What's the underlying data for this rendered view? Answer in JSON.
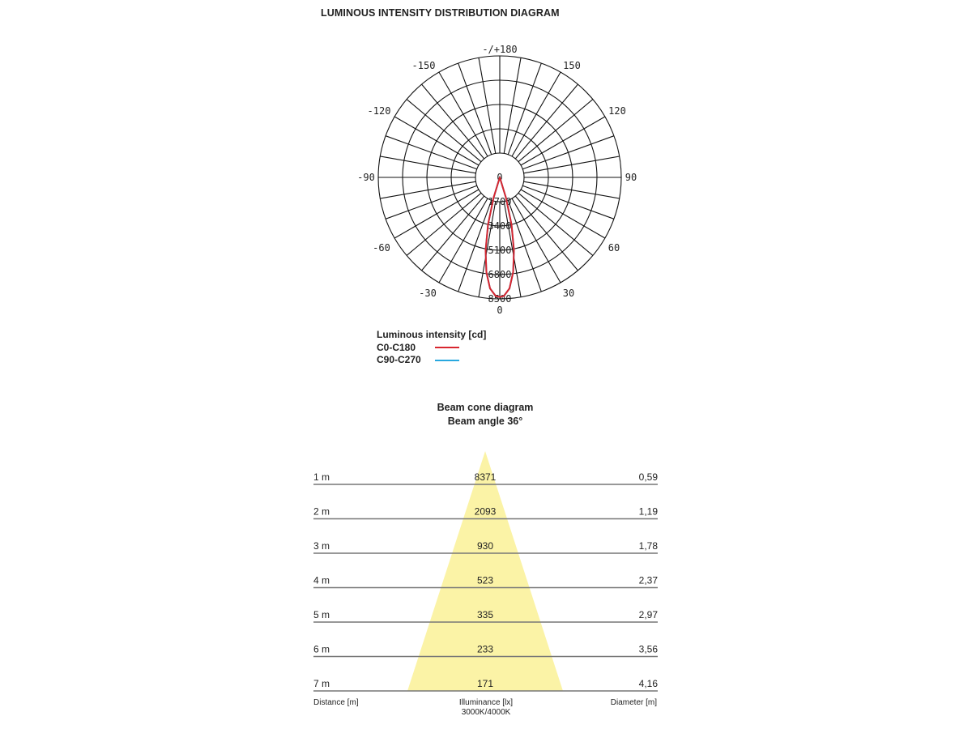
{
  "title": "LUMINOUS INTENSITY DISTRIBUTION DIAGRAM",
  "legend": {
    "heading": "Luminous intensity [cd]",
    "items": [
      {
        "label": "C0-C180",
        "color": "#d8262f"
      },
      {
        "label": "C90-C270",
        "color": "#29a8df"
      }
    ]
  },
  "cone": {
    "title": "Beam cone diagram",
    "subtitle": "Beam angle 36°",
    "footer": {
      "distance": "Distance [m]",
      "illuminance": "Illuminance [lx]",
      "illuminance_sub": "3000K/4000K",
      "diameter": "Diameter [m]"
    },
    "fill_color": "#fbf3a6"
  },
  "chart_data": [
    {
      "type": "polar",
      "title": "LUMINOUS INTENSITY DISTRIBUTION DIAGRAM",
      "angle_labels": [
        "-/+180",
        "-150",
        "150",
        "-120",
        "120",
        "-90",
        "90",
        "-60",
        "60",
        "-30",
        "30",
        "0"
      ],
      "radial_tick_labels": [
        "0",
        "1700",
        "3400",
        "5100",
        "6800",
        "8500"
      ],
      "rlim": [
        0,
        8500
      ],
      "unit": "cd",
      "series": [
        {
          "name": "C0-C180",
          "color": "#d8262f",
          "angles_deg": [
            -20,
            -17,
            -14,
            -11,
            -8,
            -5,
            -2,
            0,
            2,
            5,
            8,
            11,
            14,
            17,
            20
          ],
          "values": [
            0,
            1500,
            3400,
            5200,
            6700,
            7800,
            8300,
            8371,
            8300,
            7800,
            6700,
            5200,
            3400,
            1500,
            0
          ]
        },
        {
          "name": "C90-C270",
          "color": "#29a8df",
          "angles_deg": [
            -20,
            -17,
            -14,
            -11,
            -8,
            -5,
            -2,
            0,
            2,
            5,
            8,
            11,
            14,
            17,
            20
          ],
          "values": [
            0,
            1500,
            3400,
            5200,
            6700,
            7800,
            8300,
            8371,
            8300,
            7800,
            6700,
            5200,
            3400,
            1500,
            0
          ]
        }
      ]
    },
    {
      "type": "table",
      "title": "Beam cone diagram",
      "subtitle": "Beam angle 36°",
      "beam_angle_deg": 36,
      "columns": [
        "Distance [m]",
        "Illuminance [lx]",
        "Diameter [m]"
      ],
      "rows": [
        {
          "distance": "1 m",
          "illuminance": "8371",
          "diameter": "0,59"
        },
        {
          "distance": "2 m",
          "illuminance": "2093",
          "diameter": "1,19"
        },
        {
          "distance": "3 m",
          "illuminance": "930",
          "diameter": "1,78"
        },
        {
          "distance": "4 m",
          "illuminance": "523",
          "diameter": "2,37"
        },
        {
          "distance": "5 m",
          "illuminance": "335",
          "diameter": "2,97"
        },
        {
          "distance": "6 m",
          "illuminance": "233",
          "diameter": "3,56"
        },
        {
          "distance": "7 m",
          "illuminance": "171",
          "diameter": "4,16"
        }
      ]
    }
  ]
}
